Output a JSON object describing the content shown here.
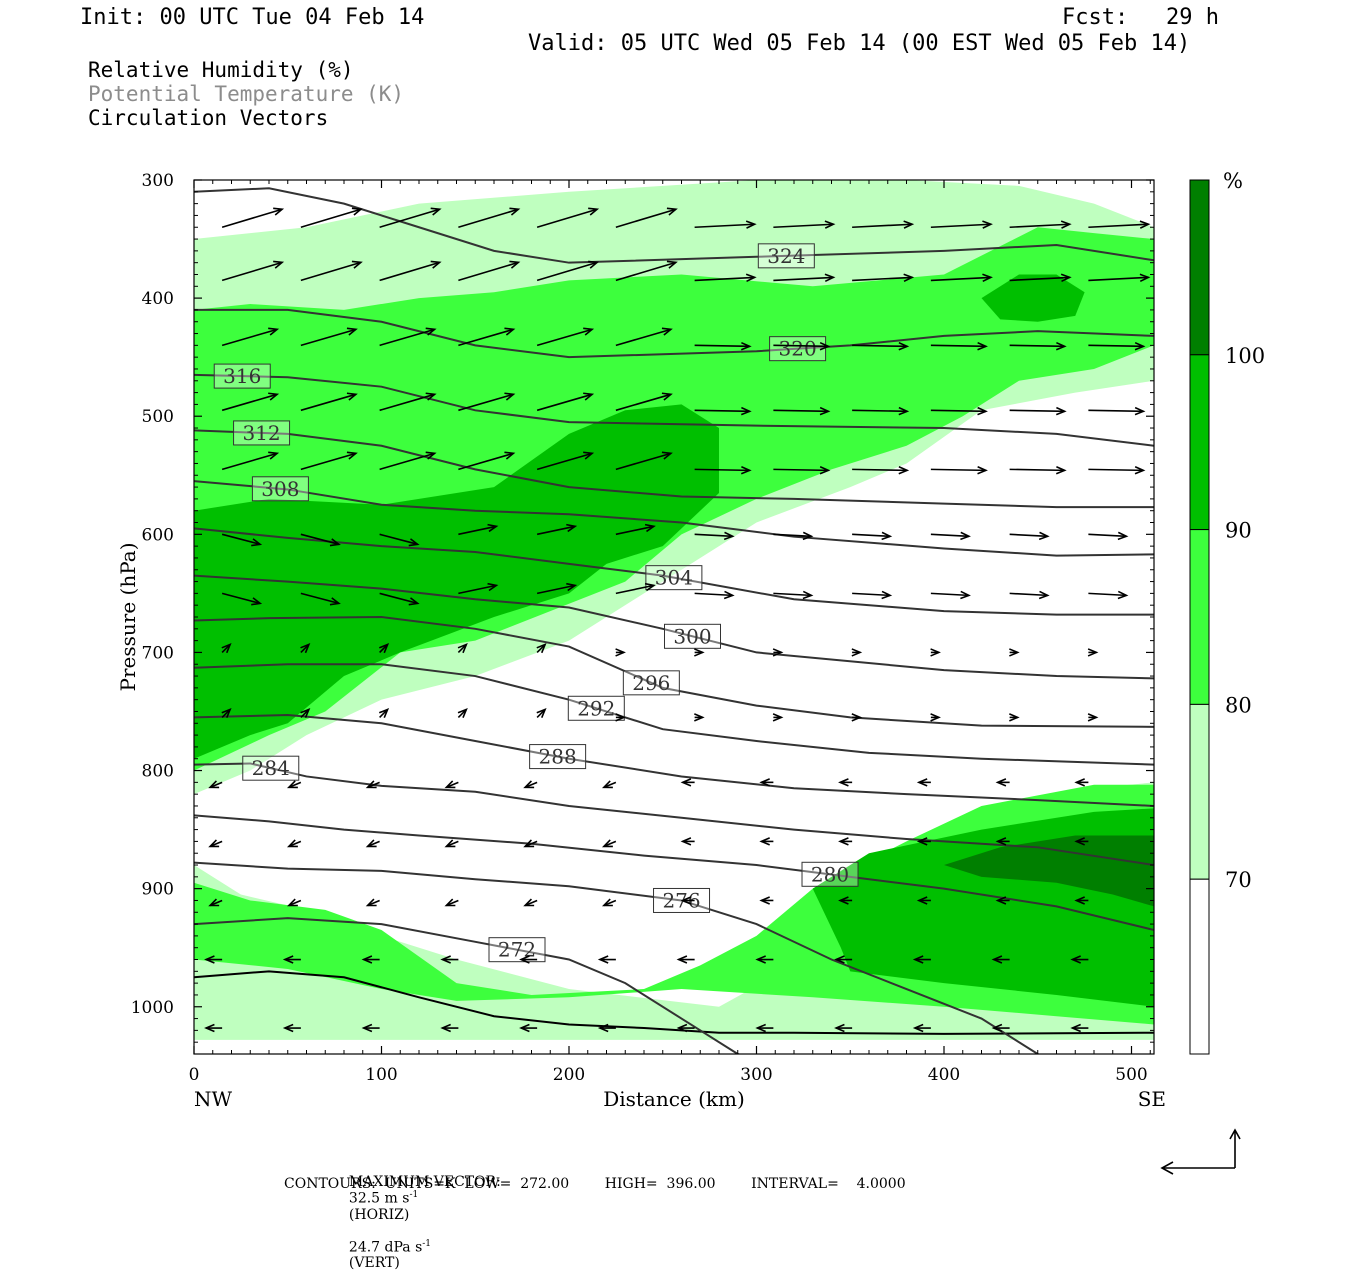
{
  "header": {
    "init": "Init: 00 UTC Tue 04 Feb 14",
    "fcst_label": "Fcst:",
    "fcst_value": "29 h",
    "valid": "Valid: 05 UTC Wed 05 Feb 14 (00 EST Wed 05 Feb 14)"
  },
  "fields": [
    "Relative Humidity (%)",
    "Potential Temperature (K)",
    "Circulation Vectors"
  ],
  "chart_data": {
    "type": "cross-section",
    "xlabel": "Distance (km)",
    "ylabel": "Pressure (hPa)",
    "xlim": [
      0,
      512
    ],
    "ylim": [
      1040,
      300
    ],
    "x_ticks": [
      0,
      100,
      200,
      300,
      400,
      500
    ],
    "y_ticks": [
      300,
      400,
      500,
      600,
      700,
      800,
      900,
      1000
    ],
    "x_end_labels": [
      "NW",
      "SE"
    ],
    "colorbar": {
      "unit": "%",
      "levels": [
        70,
        80,
        90,
        100
      ],
      "colors": [
        "#ffffff",
        "#bfffbf",
        "#3dff3d",
        "#00bf00",
        "#007f00"
      ]
    },
    "rh_regions": [
      {
        "level": 70,
        "points": [
          [
            0,
            1028
          ],
          [
            0,
            880
          ],
          [
            25,
            905
          ],
          [
            60,
            918
          ],
          [
            100,
            940
          ],
          [
            140,
            960
          ],
          [
            200,
            985
          ],
          [
            280,
            1000
          ],
          [
            320,
            965
          ],
          [
            350,
            920
          ],
          [
            420,
            840
          ],
          [
            480,
            815
          ],
          [
            512,
            810
          ],
          [
            512,
            1028
          ]
        ]
      },
      {
        "level": 70,
        "points": [
          [
            0,
            350
          ],
          [
            60,
            340
          ],
          [
            120,
            320
          ],
          [
            200,
            310
          ],
          [
            300,
            300
          ],
          [
            380,
            300
          ],
          [
            440,
            305
          ],
          [
            480,
            320
          ],
          [
            512,
            340
          ],
          [
            512,
            470
          ],
          [
            470,
            480
          ],
          [
            420,
            495
          ],
          [
            380,
            540
          ],
          [
            350,
            560
          ],
          [
            300,
            590
          ],
          [
            250,
            640
          ],
          [
            200,
            690
          ],
          [
            150,
            720
          ],
          [
            100,
            740
          ],
          [
            60,
            770
          ],
          [
            30,
            800
          ],
          [
            0,
            820
          ]
        ]
      },
      {
        "level": 80,
        "points": [
          [
            0,
            960
          ],
          [
            0,
            895
          ],
          [
            30,
            910
          ],
          [
            70,
            918
          ],
          [
            100,
            935
          ],
          [
            140,
            980
          ],
          [
            180,
            990
          ],
          [
            240,
            985
          ],
          [
            270,
            965
          ],
          [
            300,
            940
          ],
          [
            330,
            900
          ],
          [
            380,
            860
          ],
          [
            420,
            830
          ],
          [
            480,
            812
          ],
          [
            512,
            812
          ],
          [
            512,
            1015
          ],
          [
            460,
            1008
          ],
          [
            400,
            1000
          ],
          [
            330,
            992
          ],
          [
            260,
            985
          ],
          [
            200,
            992
          ],
          [
            140,
            995
          ],
          [
            100,
            985
          ],
          [
            50,
            968
          ]
        ]
      },
      {
        "level": 80,
        "points": [
          [
            0,
            410
          ],
          [
            30,
            405
          ],
          [
            80,
            410
          ],
          [
            120,
            400
          ],
          [
            160,
            395
          ],
          [
            200,
            385
          ],
          [
            260,
            380
          ],
          [
            330,
            390
          ],
          [
            400,
            380
          ],
          [
            450,
            340
          ],
          [
            480,
            345
          ],
          [
            512,
            350
          ],
          [
            512,
            440
          ],
          [
            480,
            460
          ],
          [
            440,
            470
          ],
          [
            410,
            500
          ],
          [
            380,
            525
          ],
          [
            340,
            545
          ],
          [
            300,
            570
          ],
          [
            260,
            600
          ],
          [
            230,
            640
          ],
          [
            190,
            665
          ],
          [
            150,
            690
          ],
          [
            110,
            700
          ],
          [
            70,
            750
          ],
          [
            40,
            770
          ],
          [
            0,
            800
          ]
        ]
      },
      {
        "level": 90,
        "points": [
          [
            0,
            580
          ],
          [
            40,
            570
          ],
          [
            100,
            575
          ],
          [
            160,
            560
          ],
          [
            200,
            515
          ],
          [
            230,
            495
          ],
          [
            260,
            490
          ],
          [
            280,
            510
          ],
          [
            280,
            565
          ],
          [
            250,
            610
          ],
          [
            220,
            625
          ],
          [
            200,
            650
          ],
          [
            160,
            670
          ],
          [
            110,
            700
          ],
          [
            80,
            720
          ],
          [
            50,
            760
          ],
          [
            30,
            770
          ],
          [
            0,
            790
          ]
        ]
      },
      {
        "level": 90,
        "points": [
          [
            330,
            900
          ],
          [
            360,
            870
          ],
          [
            420,
            850
          ],
          [
            480,
            835
          ],
          [
            512,
            832
          ],
          [
            512,
            1000
          ],
          [
            460,
            990
          ],
          [
            400,
            980
          ],
          [
            350,
            970
          ],
          [
            345,
            950
          ]
        ]
      },
      {
        "level": 90,
        "points": [
          [
            420,
            400
          ],
          [
            440,
            380
          ],
          [
            460,
            380
          ],
          [
            475,
            395
          ],
          [
            470,
            415
          ],
          [
            450,
            420
          ],
          [
            430,
            418
          ]
        ]
      },
      {
        "level": 100,
        "points": [
          [
            400,
            880
          ],
          [
            430,
            865
          ],
          [
            470,
            855
          ],
          [
            512,
            855
          ],
          [
            512,
            915
          ],
          [
            490,
            905
          ],
          [
            460,
            895
          ],
          [
            420,
            890
          ]
        ]
      }
    ],
    "theta_contours": [
      {
        "label": "324",
        "points": [
          [
            0,
            310
          ],
          [
            40,
            307
          ],
          [
            80,
            320
          ],
          [
            120,
            340
          ],
          [
            160,
            360
          ],
          [
            200,
            370
          ],
          [
            300,
            365
          ],
          [
            400,
            360
          ],
          [
            460,
            355
          ],
          [
            512,
            368
          ]
        ]
      },
      {
        "label": "320",
        "points": [
          [
            0,
            410
          ],
          [
            50,
            410
          ],
          [
            100,
            420
          ],
          [
            150,
            440
          ],
          [
            200,
            450
          ],
          [
            300,
            445
          ],
          [
            350,
            440
          ],
          [
            400,
            432
          ],
          [
            450,
            428
          ],
          [
            512,
            432
          ]
        ]
      },
      {
        "label": "316",
        "points": [
          [
            0,
            465
          ],
          [
            50,
            467
          ],
          [
            100,
            475
          ],
          [
            150,
            495
          ],
          [
            200,
            505
          ],
          [
            300,
            508
          ],
          [
            400,
            510
          ],
          [
            460,
            515
          ],
          [
            512,
            525
          ]
        ]
      },
      {
        "label": "312",
        "points": [
          [
            0,
            512
          ],
          [
            50,
            515
          ],
          [
            100,
            525
          ],
          [
            150,
            545
          ],
          [
            200,
            560
          ],
          [
            260,
            568
          ],
          [
            320,
            570
          ],
          [
            400,
            574
          ],
          [
            460,
            577
          ],
          [
            512,
            577
          ]
        ]
      },
      {
        "label": "308",
        "points": [
          [
            0,
            555
          ],
          [
            50,
            562
          ],
          [
            100,
            575
          ],
          [
            150,
            580
          ],
          [
            200,
            583
          ],
          [
            260,
            590
          ],
          [
            320,
            602
          ],
          [
            400,
            612
          ],
          [
            460,
            618
          ],
          [
            512,
            617
          ]
        ]
      },
      {
        "label": "304",
        "points": [
          [
            0,
            595
          ],
          [
            50,
            603
          ],
          [
            100,
            610
          ],
          [
            150,
            615
          ],
          [
            200,
            625
          ],
          [
            250,
            635
          ],
          [
            320,
            655
          ],
          [
            400,
            665
          ],
          [
            460,
            668
          ],
          [
            512,
            668
          ]
        ]
      },
      {
        "label": "300",
        "points": [
          [
            0,
            635
          ],
          [
            50,
            640
          ],
          [
            100,
            646
          ],
          [
            150,
            655
          ],
          [
            200,
            662
          ],
          [
            250,
            680
          ],
          [
            300,
            700
          ],
          [
            400,
            715
          ],
          [
            460,
            720
          ],
          [
            512,
            722
          ]
        ]
      },
      {
        "label": "296",
        "points": [
          [
            0,
            673
          ],
          [
            40,
            671
          ],
          [
            100,
            670
          ],
          [
            150,
            680
          ],
          [
            200,
            695
          ],
          [
            250,
            730
          ],
          [
            300,
            745
          ],
          [
            350,
            755
          ],
          [
            420,
            762
          ],
          [
            512,
            763
          ]
        ]
      },
      {
        "label": "292",
        "points": [
          [
            0,
            713
          ],
          [
            50,
            710
          ],
          [
            100,
            710
          ],
          [
            150,
            720
          ],
          [
            200,
            740
          ],
          [
            250,
            765
          ],
          [
            300,
            775
          ],
          [
            360,
            785
          ],
          [
            420,
            790
          ],
          [
            512,
            795
          ]
        ]
      },
      {
        "label": "288",
        "points": [
          [
            0,
            755
          ],
          [
            50,
            753
          ],
          [
            100,
            760
          ],
          [
            150,
            775
          ],
          [
            200,
            790
          ],
          [
            260,
            805
          ],
          [
            320,
            815
          ],
          [
            380,
            820
          ],
          [
            450,
            825
          ],
          [
            512,
            830
          ]
        ]
      },
      {
        "label": "284",
        "points": [
          [
            0,
            795
          ],
          [
            30,
            794
          ],
          [
            60,
            805
          ],
          [
            100,
            813
          ],
          [
            150,
            818
          ],
          [
            200,
            830
          ],
          [
            260,
            840
          ],
          [
            320,
            850
          ],
          [
            380,
            858
          ],
          [
            450,
            865
          ],
          [
            512,
            880
          ]
        ]
      },
      {
        "label": "280",
        "points": [
          [
            0,
            838
          ],
          [
            40,
            843
          ],
          [
            80,
            850
          ],
          [
            120,
            855
          ],
          [
            180,
            862
          ],
          [
            240,
            872
          ],
          [
            300,
            880
          ],
          [
            350,
            890
          ],
          [
            400,
            900
          ],
          [
            460,
            915
          ],
          [
            512,
            935
          ]
        ]
      },
      {
        "label": "276",
        "points": [
          [
            0,
            878
          ],
          [
            50,
            883
          ],
          [
            100,
            885
          ],
          [
            150,
            892
          ],
          [
            200,
            898
          ],
          [
            260,
            910
          ],
          [
            300,
            930
          ],
          [
            340,
            960
          ],
          [
            380,
            985
          ],
          [
            420,
            1010
          ],
          [
            455,
            1045
          ]
        ]
      },
      {
        "label": "272",
        "points": [
          [
            0,
            930
          ],
          [
            50,
            925
          ],
          [
            100,
            930
          ],
          [
            150,
            945
          ],
          [
            200,
            960
          ],
          [
            230,
            980
          ],
          [
            260,
            1010
          ],
          [
            290,
            1040
          ],
          [
            300,
            1045
          ]
        ]
      }
    ],
    "terrain": [
      [
        0,
        975
      ],
      [
        40,
        970
      ],
      [
        80,
        975
      ],
      [
        120,
        992
      ],
      [
        160,
        1008
      ],
      [
        200,
        1015
      ],
      [
        240,
        1018
      ],
      [
        280,
        1022
      ],
      [
        320,
        1022
      ],
      [
        400,
        1023
      ],
      [
        512,
        1022
      ]
    ]
  },
  "footer": {
    "max_vector_label": "MAXIMUM VECTOR:",
    "horiz_value": "32.5 m s",
    "horiz_exp": "-1",
    "horiz_suffix": "(HORIZ)",
    "vert_value": "24.7 dPa s",
    "vert_exp": "-1",
    "vert_suffix": "(VERT)",
    "contours": "CONTOURS:  UNITS=K  LOW=  272.00        HIGH=  396.00        INTERVAL=    4.0000"
  }
}
